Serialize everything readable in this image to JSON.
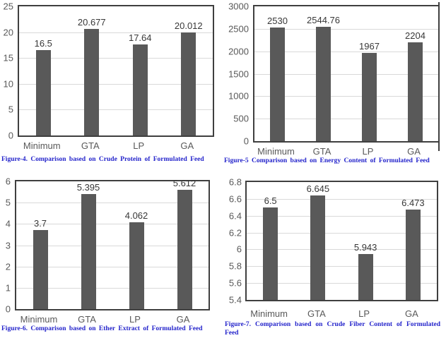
{
  "colors": {
    "bar": "#595959",
    "gridline": "#d9d9d9",
    "plot_border": "#3f3f3f",
    "tick_label": "#595959",
    "value_label": "#383838",
    "caption": "#2424cb",
    "background": "#ffffff"
  },
  "chart_data": [
    {
      "type": "bar",
      "title": "",
      "categories": [
        "Minimum",
        "GTA",
        "LP",
        "GA"
      ],
      "values": [
        16.5,
        20.677,
        17.64,
        20.012
      ],
      "value_labels": [
        "16.5",
        "20.677",
        "17.64",
        "20.012"
      ],
      "ylim": [
        0,
        25
      ],
      "y_ticks": [
        0,
        5,
        10,
        15,
        20,
        25
      ],
      "grid": true,
      "legend": "none",
      "xlabel": "",
      "ylabel": "",
      "caption": "Figure-4. Comparison based on Crude Protein of Formulated Feed"
    },
    {
      "type": "bar",
      "title": "",
      "categories": [
        "Minimum",
        "GTA",
        "LP",
        "GA"
      ],
      "values": [
        2530,
        2544.76,
        1967,
        2204
      ],
      "value_labels": [
        "2530",
        "2544.76",
        "1967",
        "2204"
      ],
      "ylim": [
        0,
        3000
      ],
      "y_ticks": [
        0,
        500,
        1000,
        1500,
        2000,
        2500,
        3000
      ],
      "grid": true,
      "legend": "none",
      "xlabel": "",
      "ylabel": "",
      "caption": "Figure-5 Comparison based on Energy Content  of Formulated Feed"
    },
    {
      "type": "bar",
      "title": "",
      "categories": [
        "Minimum",
        "GTA",
        "LP",
        "GA"
      ],
      "values": [
        3.7,
        5.395,
        4.062,
        5.612
      ],
      "value_labels": [
        "3.7",
        "5.395",
        "4.062",
        "5.612"
      ],
      "ylim": [
        0,
        6
      ],
      "y_ticks": [
        0,
        1,
        2,
        3,
        4,
        5,
        6
      ],
      "grid": true,
      "legend": "none",
      "xlabel": "",
      "ylabel": "",
      "caption": "Figure-6. Comparison based on Ether Extract of Formulated Feed"
    },
    {
      "type": "bar",
      "title": "",
      "categories": [
        "Minimum",
        "GTA",
        "LP",
        "GA"
      ],
      "values": [
        6.5,
        6.645,
        5.943,
        6.473
      ],
      "value_labels": [
        "6.5",
        "6.645",
        "5.943",
        "6.473"
      ],
      "ylim": [
        5.4,
        6.8
      ],
      "y_ticks": [
        5.4,
        5.6,
        5.8,
        6,
        6.2,
        6.4,
        6.6,
        6.8
      ],
      "grid": true,
      "legend": "none",
      "xlabel": "",
      "ylabel": "",
      "caption": "Figure-7. Comparison based on Crude Fiber Content of Formulated Feed"
    }
  ]
}
